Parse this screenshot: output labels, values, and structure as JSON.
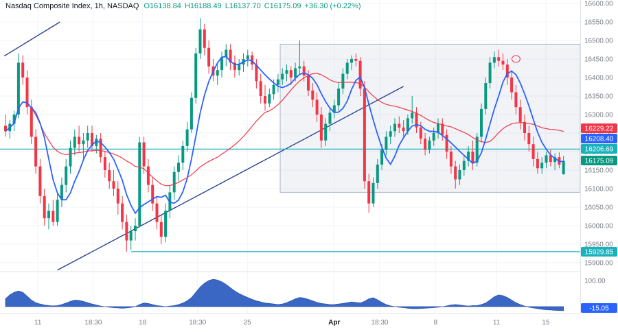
{
  "legend": {
    "symbol": "Nasdaq Composite Index, 1h, NASDAQ",
    "ohlc": [
      "O16138.84",
      "H16188.49",
      "L16137.70",
      "C16175.09"
    ],
    "change": "+36.30 (+0.22%)"
  },
  "colors": {
    "background": "#ffffff",
    "grid": "#f0f3fa",
    "up": "#089981",
    "down": "#f23645",
    "teal": "#18b2bd",
    "trendline": "#2a3f8f",
    "box_fill": "rgba(120,140,180,0.10)",
    "box_border": "#aab6c9",
    "indicator": "#3a66c4",
    "indicator_edge": "#2f57ad",
    "axis_text": "#787b86",
    "axis_border": "#e0e3eb",
    "legend_text": "#131722"
  },
  "chart_data": {
    "type": "candlestick",
    "title": "Nasdaq Composite Index",
    "interval": "1h",
    "exchange": "NASDAQ",
    "last_bar": {
      "open": 16138.84,
      "high": 16188.49,
      "low": 16137.7,
      "close": 16175.09,
      "change": "+36.30 (+0.22%)"
    },
    "price_axis": {
      "min": 15900,
      "max": 16600,
      "ticks": [
        {
          "value": 16600,
          "label": "16600.00"
        },
        {
          "value": 16550,
          "label": "16550.00"
        },
        {
          "value": 16500,
          "label": "16500.00"
        },
        {
          "value": 16450,
          "label": "16450.00"
        },
        {
          "value": 16400,
          "label": "16400.00"
        },
        {
          "value": 16350,
          "label": "16350.00"
        },
        {
          "value": 16300,
          "label": "16300.00"
        },
        {
          "value": 16250,
          "label": "16250.00"
        },
        {
          "value": 16200,
          "label": "16200.00"
        },
        {
          "value": 16150,
          "label": "16150.00"
        },
        {
          "value": 16100,
          "label": "16100.00"
        },
        {
          "value": 16050,
          "label": "16050.00"
        },
        {
          "value": 16000,
          "label": "16000.00"
        },
        {
          "value": 15950,
          "label": "15950.00"
        },
        {
          "value": 15900,
          "label": "15900.00"
        }
      ]
    },
    "time_axis": {
      "ticks": [
        {
          "label": "11",
          "i": 7.5
        },
        {
          "label": "18:30",
          "i": 20.3
        },
        {
          "label": "18",
          "i": 31.7
        },
        {
          "label": "18:30",
          "i": 44.4
        },
        {
          "label": "25",
          "i": 55.9
        },
        {
          "label": "Apr",
          "i": 76.0,
          "major": true
        },
        {
          "label": "18:30",
          "i": 86.5
        },
        {
          "label": "8",
          "i": 99.4
        },
        {
          "label": "11",
          "i": 113.5
        },
        {
          "label": "15",
          "i": 124.9
        }
      ]
    },
    "candles": [
      [
        16270,
        16300,
        16240,
        16255
      ],
      [
        16255,
        16285,
        16235,
        16275
      ],
      [
        16275,
        16310,
        16255,
        16300
      ],
      [
        16300,
        16465,
        16290,
        16440
      ],
      [
        16440,
        16460,
        16380,
        16400
      ],
      [
        16400,
        16420,
        16300,
        16320
      ],
      [
        16320,
        16340,
        16220,
        16240
      ],
      [
        16240,
        16260,
        16140,
        16160
      ],
      [
        16160,
        16180,
        16060,
        16080
      ],
      [
        16080,
        16100,
        16000,
        16020
      ],
      [
        16020,
        16060,
        15990,
        16040
      ],
      [
        16040,
        16070,
        16000,
        16010
      ],
      [
        16010,
        16090,
        16000,
        16070
      ],
      [
        16070,
        16130,
        16050,
        16110
      ],
      [
        16110,
        16180,
        16090,
        16160
      ],
      [
        16160,
        16230,
        16140,
        16210
      ],
      [
        16210,
        16260,
        16190,
        16240
      ],
      [
        16240,
        16270,
        16200,
        16220
      ],
      [
        16220,
        16250,
        16180,
        16230
      ],
      [
        16230,
        16270,
        16210,
        16250
      ],
      [
        16250,
        16270,
        16200,
        16215
      ],
      [
        16215,
        16245,
        16195,
        16235
      ],
      [
        16235,
        16250,
        16170,
        16185
      ],
      [
        16185,
        16200,
        16130,
        16150
      ],
      [
        16150,
        16170,
        16100,
        16120
      ],
      [
        16120,
        16150,
        16080,
        16100
      ],
      [
        16100,
        16120,
        16030,
        16060
      ],
      [
        16060,
        16080,
        15990,
        16010
      ],
      [
        16010,
        16030,
        15930,
        15960
      ],
      [
        15960,
        16000,
        15935,
        15985
      ],
      [
        15985,
        16020,
        15960,
        16000
      ],
      [
        16000,
        16240,
        15995,
        16225
      ],
      [
        16225,
        16240,
        16140,
        16160
      ],
      [
        16160,
        16180,
        16090,
        16110
      ],
      [
        16110,
        16130,
        16040,
        16060
      ],
      [
        16060,
        16080,
        15990,
        16010
      ],
      [
        16010,
        16030,
        15950,
        15970
      ],
      [
        15970,
        16060,
        15955,
        16040
      ],
      [
        16040,
        16110,
        16020,
        16090
      ],
      [
        16090,
        16160,
        16070,
        16145
      ],
      [
        16145,
        16190,
        16120,
        16170
      ],
      [
        16170,
        16230,
        16150,
        16215
      ],
      [
        16215,
        16280,
        16200,
        16260
      ],
      [
        16260,
        16360,
        16250,
        16345
      ],
      [
        16345,
        16480,
        16330,
        16465
      ],
      [
        16465,
        16560,
        16450,
        16530
      ],
      [
        16530,
        16545,
        16460,
        16480
      ],
      [
        16480,
        16500,
        16410,
        16430
      ],
      [
        16430,
        16450,
        16390,
        16405
      ],
      [
        16405,
        16440,
        16380,
        16420
      ],
      [
        16420,
        16470,
        16400,
        16455
      ],
      [
        16455,
        16490,
        16430,
        16475
      ],
      [
        16475,
        16490,
        16420,
        16440
      ],
      [
        16440,
        16460,
        16400,
        16420
      ],
      [
        16420,
        16450,
        16405,
        16435
      ],
      [
        16435,
        16465,
        16415,
        16450
      ],
      [
        16450,
        16475,
        16430,
        16460
      ],
      [
        16460,
        16470,
        16420,
        16435
      ],
      [
        16435,
        16450,
        16370,
        16390
      ],
      [
        16390,
        16410,
        16330,
        16350
      ],
      [
        16350,
        16380,
        16310,
        16330
      ],
      [
        16330,
        16370,
        16320,
        16355
      ],
      [
        16355,
        16395,
        16340,
        16380
      ],
      [
        16380,
        16410,
        16360,
        16395
      ],
      [
        16395,
        16425,
        16380,
        16410
      ],
      [
        16410,
        16435,
        16390,
        16420
      ],
      [
        16420,
        16430,
        16380,
        16400
      ],
      [
        16400,
        16440,
        16390,
        16425
      ],
      [
        16425,
        16500,
        16410,
        16430
      ],
      [
        16430,
        16445,
        16390,
        16405
      ],
      [
        16405,
        16420,
        16350,
        16365
      ],
      [
        16365,
        16385,
        16320,
        16340
      ],
      [
        16340,
        16360,
        16280,
        16300
      ],
      [
        16300,
        16320,
        16210,
        16230
      ],
      [
        16230,
        16290,
        16215,
        16275
      ],
      [
        16275,
        16320,
        16255,
        16305
      ],
      [
        16305,
        16340,
        16290,
        16325
      ],
      [
        16325,
        16385,
        16310,
        16370
      ],
      [
        16370,
        16425,
        16355,
        16410
      ],
      [
        16410,
        16450,
        16395,
        16440
      ],
      [
        16440,
        16460,
        16420,
        16450
      ],
      [
        16450,
        16465,
        16430,
        16445
      ],
      [
        16445,
        16455,
        16350,
        16370
      ],
      [
        16370,
        16390,
        16100,
        16120
      ],
      [
        16120,
        16140,
        16035,
        16060
      ],
      [
        16060,
        16130,
        16050,
        16115
      ],
      [
        16115,
        16180,
        16100,
        16165
      ],
      [
        16165,
        16220,
        16150,
        16205
      ],
      [
        16205,
        16255,
        16190,
        16240
      ],
      [
        16240,
        16270,
        16220,
        16255
      ],
      [
        16255,
        16290,
        16240,
        16275
      ],
      [
        16275,
        16295,
        16250,
        16265
      ],
      [
        16265,
        16285,
        16240,
        16255
      ],
      [
        16255,
        16300,
        16245,
        16290
      ],
      [
        16290,
        16350,
        16275,
        16305
      ],
      [
        16305,
        16320,
        16250,
        16265
      ],
      [
        16265,
        16280,
        16220,
        16235
      ],
      [
        16235,
        16250,
        16190,
        16205
      ],
      [
        16205,
        16240,
        16195,
        16230
      ],
      [
        16230,
        16265,
        16215,
        16250
      ],
      [
        16250,
        16290,
        16235,
        16275
      ],
      [
        16275,
        16290,
        16230,
        16245
      ],
      [
        16245,
        16260,
        16180,
        16200
      ],
      [
        16200,
        16215,
        16140,
        16160
      ],
      [
        16160,
        16175,
        16100,
        16125
      ],
      [
        16125,
        16165,
        16110,
        16150
      ],
      [
        16150,
        16190,
        16135,
        16175
      ],
      [
        16175,
        16215,
        16160,
        16200
      ],
      [
        16200,
        16230,
        16150,
        16170
      ],
      [
        16170,
        16250,
        16160,
        16240
      ],
      [
        16240,
        16330,
        16225,
        16315
      ],
      [
        16315,
        16400,
        16300,
        16385
      ],
      [
        16385,
        16455,
        16370,
        16440
      ],
      [
        16440,
        16470,
        16425,
        16455
      ],
      [
        16455,
        16475,
        16430,
        16445
      ],
      [
        16445,
        16465,
        16420,
        16435
      ],
      [
        16435,
        16450,
        16380,
        16400
      ],
      [
        16400,
        16420,
        16340,
        16360
      ],
      [
        16360,
        16380,
        16300,
        16320
      ],
      [
        16320,
        16340,
        16260,
        16280
      ],
      [
        16280,
        16300,
        16230,
        16250
      ],
      [
        16250,
        16270,
        16200,
        16220
      ],
      [
        16220,
        16240,
        16160,
        16180
      ],
      [
        16180,
        16200,
        16140,
        16155
      ],
      [
        16155,
        16185,
        16140,
        16170
      ],
      [
        16170,
        16200,
        16155,
        16190
      ],
      [
        16190,
        16205,
        16160,
        16172
      ],
      [
        16172,
        16195,
        16150,
        16185
      ],
      [
        16185,
        16198,
        16155,
        16165
      ],
      [
        16138.84,
        16188.49,
        16137.7,
        16175.09
      ]
    ],
    "overlays": {
      "ma_fast": {
        "period": 7,
        "color": "#2962ff",
        "current_label": "16208.40",
        "current_value": 16208.4
      },
      "ma_slow": {
        "period": 30,
        "color": "#f23645",
        "current_label": "16229.22",
        "current_value": 16229.22
      },
      "hlines": [
        {
          "value": 16206.69,
          "label": "16206.69",
          "from_i": -1.3
        },
        {
          "value": 15929.85,
          "label": "15929.85",
          "from_i": 29
        }
      ],
      "rect": {
        "i1": 63.5,
        "price_top": 16490,
        "price_bottom": 16090
      },
      "trendlines": [
        {
          "i1": -0.3,
          "p1": 16458,
          "i2": 12.6,
          "p2": 16550
        },
        {
          "i1": 12,
          "p1": 15880,
          "i2": 92,
          "p2": 16376
        }
      ],
      "circle": {
        "i": 118,
        "price": 16450
      }
    },
    "price_badges": [
      {
        "label": "16229.22",
        "value": 16229.22,
        "color": "#f23645",
        "name": "ma-slow-price-badge"
      },
      {
        "label": "16208.40",
        "value": 16208.4,
        "color": "#2962ff",
        "name": "ma-fast-price-badge"
      },
      {
        "label": "16206.69",
        "value": 16206.69,
        "color": "#18b2bd",
        "name": "hline-upper-price-badge"
      },
      {
        "label": "16175.09",
        "value": 16175.09,
        "color": "#089981",
        "name": "last-price-badge"
      },
      {
        "label": "15929.85",
        "value": 15929.85,
        "color": "#18b2bd",
        "name": "hline-lower-price-badge"
      }
    ],
    "indicator": {
      "axis_label": "100.00",
      "axis_value": 100,
      "badge": {
        "label": "-15.05",
        "value": -15.05,
        "color": "#2962ff"
      },
      "values": [
        30,
        45,
        55,
        60,
        55,
        40,
        25,
        15,
        10,
        6,
        4,
        3,
        4,
        8,
        14,
        20,
        25,
        24,
        20,
        15,
        10,
        6,
        2,
        0,
        -2,
        -4,
        -5,
        -6,
        -5,
        -3,
        0,
        8,
        14,
        12,
        8,
        4,
        2,
        0,
        2,
        4,
        8,
        14,
        22,
        35,
        55,
        75,
        90,
        100,
        105,
        102,
        95,
        85,
        72,
        60,
        50,
        42,
        35,
        28,
        22,
        18,
        14,
        12,
        10,
        8,
        10,
        15,
        22,
        30,
        35,
        33,
        28,
        22,
        16,
        12,
        10,
        8,
        8,
        10,
        12,
        15,
        18,
        16,
        14,
        20,
        30,
        34,
        26,
        16,
        8,
        3,
        0,
        -2,
        -4,
        -6,
        -8,
        -8,
        -7,
        -6,
        -5,
        -4,
        -2,
        0,
        3,
        6,
        8,
        6,
        4,
        2,
        4,
        4,
        8,
        14,
        25,
        38,
        45,
        42,
        35,
        25,
        15,
        8,
        2,
        -2,
        -5,
        -8,
        -10,
        -12,
        -13,
        -14,
        -15,
        -15.05
      ]
    }
  }
}
